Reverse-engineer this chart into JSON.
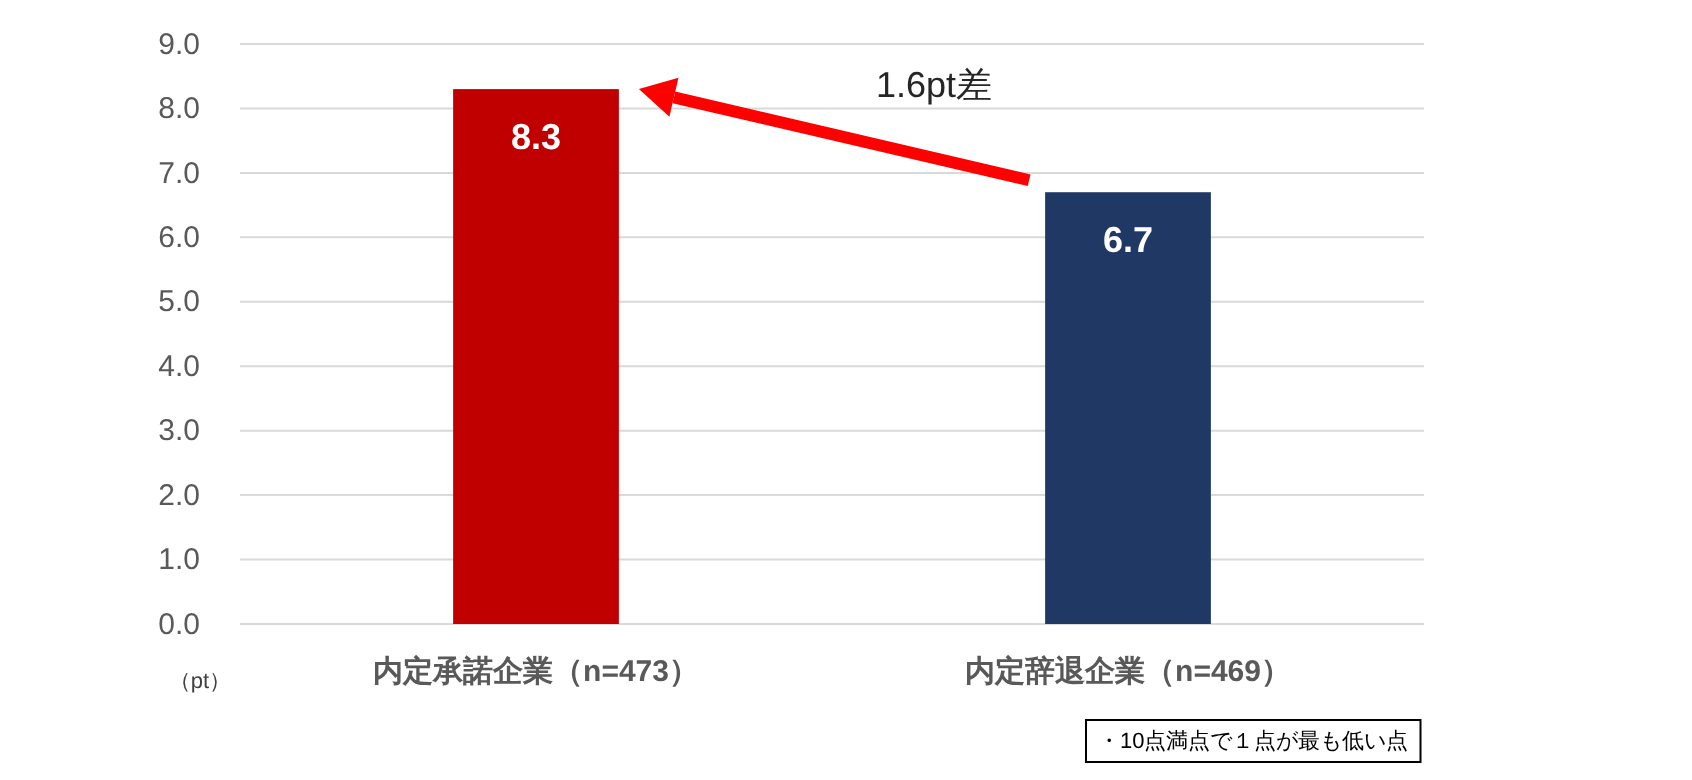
{
  "chart_data": {
    "type": "bar",
    "categories": [
      "内定承諾企業（n=473）",
      "内定辞退企業（n=469）"
    ],
    "values": [
      8.3,
      6.7
    ],
    "colors": [
      "#c00000",
      "#1f3864"
    ],
    "ylim": [
      0,
      9
    ],
    "yticks": [
      {
        "value": 0,
        "label": "0.0"
      },
      {
        "value": 1,
        "label": "1.0"
      },
      {
        "value": 2,
        "label": "2.0"
      },
      {
        "value": 3,
        "label": "3.0"
      },
      {
        "value": 4,
        "label": "4.0"
      },
      {
        "value": 5,
        "label": "5.0"
      },
      {
        "value": 6,
        "label": "6.0"
      },
      {
        "value": 7,
        "label": "7.0"
      },
      {
        "value": 8,
        "label": "8.0"
      },
      {
        "value": 9,
        "label": "9.0"
      }
    ],
    "ylabel": "（pt）",
    "grid": "y",
    "data_labels": true,
    "annotations": [
      "1.6pt差",
      "・10点満点で１点が最も低い点"
    ]
  }
}
